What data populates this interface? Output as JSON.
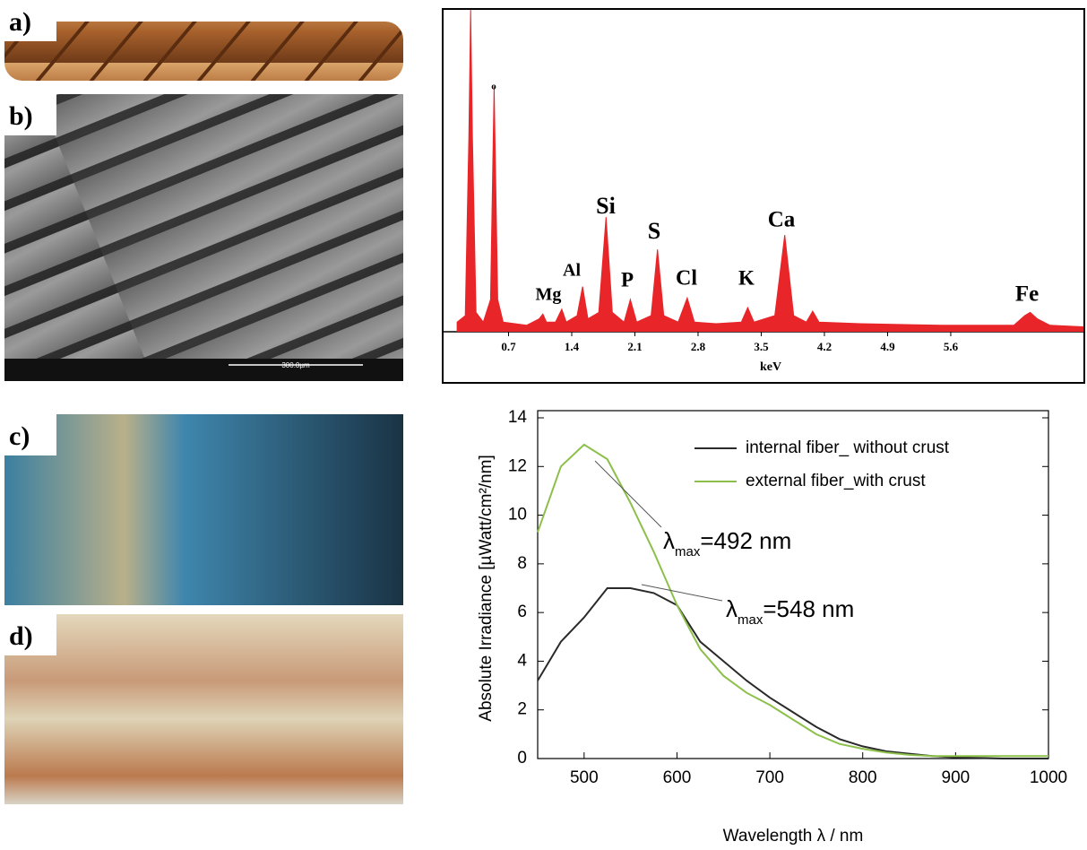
{
  "panels": {
    "labels": [
      "a)",
      "b)",
      "c)",
      "d)"
    ],
    "sem_scale": "300.0µm"
  },
  "chart_data": [
    {
      "type": "spectrum",
      "x_label": "keV",
      "color": "#e8262a",
      "xlim": [
        0,
        7.08
      ],
      "ylim": [
        0,
        100
      ],
      "xticks": [
        0.7,
        1.4,
        2.1,
        2.8,
        3.5,
        4.2,
        4.9,
        5.6
      ],
      "x": [
        0.13,
        0.22,
        0.26,
        0.28,
        0.3,
        0.34,
        0.42,
        0.5,
        0.54,
        0.58,
        0.64,
        0.9,
        1.04,
        1.08,
        1.12,
        1.22,
        1.29,
        1.34,
        1.46,
        1.52,
        1.58,
        1.7,
        1.78,
        1.85,
        1.98,
        2.05,
        2.12,
        2.28,
        2.35,
        2.42,
        2.58,
        2.68,
        2.76,
        3.0,
        3.28,
        3.35,
        3.42,
        3.65,
        3.76,
        3.86,
        4.0,
        4.07,
        4.14,
        4.6,
        5.5,
        6.3,
        6.42,
        6.48,
        6.56,
        6.7,
        7.08
      ],
      "values": [
        3,
        5,
        60,
        100,
        60,
        6,
        3,
        10,
        76,
        10,
        3,
        2,
        4,
        5.5,
        3,
        3,
        7,
        3,
        5,
        14,
        4,
        6,
        35.5,
        6,
        3,
        10,
        3,
        5,
        25.5,
        5,
        3,
        10.5,
        3,
        2.5,
        3,
        7.5,
        3,
        5,
        30,
        5,
        3,
        6.4,
        3,
        2.5,
        2,
        2,
        5,
        6,
        4,
        2,
        1.5
      ],
      "annotations": [
        "o",
        "Mg",
        "Al",
        "Si",
        "P",
        "S",
        "Cl",
        "K",
        "Ca",
        "Fe"
      ]
    },
    {
      "type": "line",
      "x_label": "Wavelength λ / nm",
      "y_label": "Absolute Irradiance [µWatt/cm²/nm]",
      "xlim": [
        450,
        1000
      ],
      "ylim": [
        0,
        14
      ],
      "xticks": [
        500,
        600,
        700,
        800,
        900,
        1000
      ],
      "yticks": [
        0,
        2,
        4,
        6,
        8,
        10,
        12,
        14
      ],
      "legend": "top-right",
      "x": [
        450,
        475,
        500,
        525,
        550,
        575,
        600,
        625,
        650,
        675,
        700,
        725,
        750,
        775,
        800,
        825,
        850,
        875,
        900,
        950,
        1000
      ],
      "series": [
        {
          "name": "internal fiber_ without crust",
          "color": "#2a2a2a",
          "values": [
            3.2,
            4.8,
            5.8,
            7.0,
            7.0,
            6.8,
            6.3,
            4.8,
            4.0,
            3.2,
            2.5,
            1.9,
            1.3,
            0.8,
            0.5,
            0.3,
            0.2,
            0.1,
            0.05,
            0,
            0
          ]
        },
        {
          "name": "external fiber_with crust",
          "color": "#8cc04a",
          "values": [
            9.3,
            12.0,
            12.9,
            12.3,
            10.5,
            8.5,
            6.3,
            4.5,
            3.4,
            2.7,
            2.2,
            1.6,
            1.0,
            0.6,
            0.4,
            0.25,
            0.15,
            0.1,
            0.1,
            0.1,
            0.1
          ]
        }
      ],
      "annotations": [
        {
          "symbol": "λ",
          "subscript": "max",
          "text": "=492 nm"
        },
        {
          "symbol": "λ",
          "subscript": "max",
          "text": "=548 nm"
        }
      ]
    }
  ]
}
